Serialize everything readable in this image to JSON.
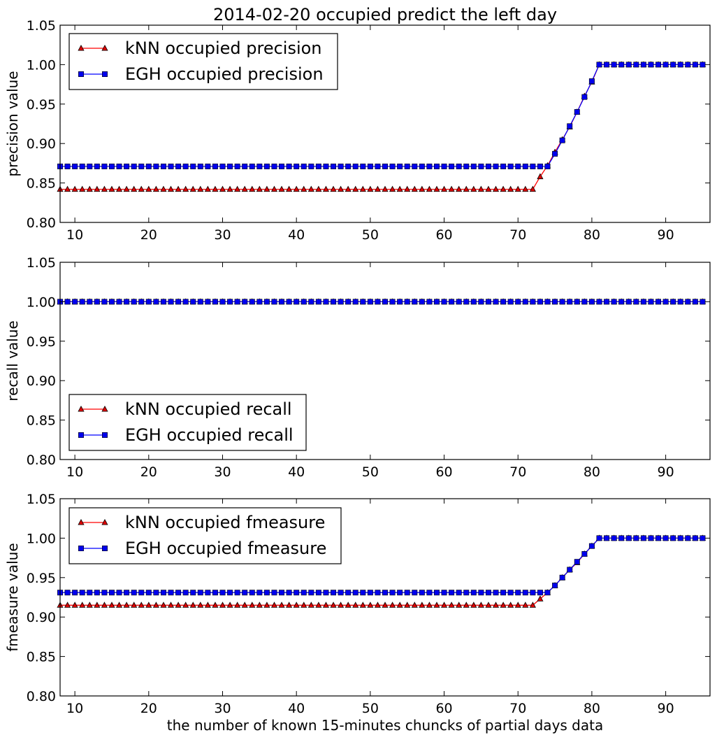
{
  "figure_title": "2014-02-20 occupied predict the left day",
  "colors": {
    "knn": "#ff0000",
    "egh": "#0000ff",
    "knn_marker_fill": "#dd0000",
    "egh_marker_fill": "#0000ee",
    "frame": "#000000"
  },
  "chart_data": [
    {
      "type": "line",
      "title": "2014-02-20 occupied predict the left day",
      "xlabel": "",
      "ylabel": "precision value",
      "xlim": [
        8,
        96
      ],
      "ylim": [
        0.8,
        1.05
      ],
      "xticks": [
        10,
        20,
        30,
        40,
        50,
        60,
        70,
        80,
        90
      ],
      "yticks": [
        "0.80",
        "0.85",
        "0.90",
        "0.95",
        "1.00",
        "1.05"
      ],
      "grid": false,
      "legend_position": "top-left",
      "x": [
        8,
        95
      ],
      "series": [
        {
          "name": "kNN occupied precision",
          "marker": "triangle",
          "color": "red",
          "points": [
            [
              8,
              0.842
            ],
            [
              72,
              0.842
            ],
            [
              73,
              0.858
            ],
            [
              74,
              0.872
            ],
            [
              75,
              0.889
            ],
            [
              76,
              0.905
            ],
            [
              77,
              0.921
            ],
            [
              78,
              0.94
            ],
            [
              79,
              0.96
            ],
            [
              80,
              0.978
            ],
            [
              81,
              1.0
            ],
            [
              95,
              1.0
            ]
          ]
        },
        {
          "name": "EGH occupied precision",
          "marker": "square",
          "color": "blue",
          "points": [
            [
              8,
              0.871
            ],
            [
              74,
              0.871
            ],
            [
              75,
              0.887
            ],
            [
              76,
              0.904
            ],
            [
              77,
              0.922
            ],
            [
              78,
              0.94
            ],
            [
              79,
              0.959
            ],
            [
              80,
              0.979
            ],
            [
              81,
              1.0
            ],
            [
              95,
              1.0
            ]
          ]
        }
      ]
    },
    {
      "type": "line",
      "title": "",
      "xlabel": "",
      "ylabel": "recall value",
      "xlim": [
        8,
        96
      ],
      "ylim": [
        0.8,
        1.05
      ],
      "xticks": [
        10,
        20,
        30,
        40,
        50,
        60,
        70,
        80,
        90
      ],
      "yticks": [
        "0.80",
        "0.85",
        "0.90",
        "0.95",
        "1.00",
        "1.05"
      ],
      "grid": false,
      "legend_position": "bottom-left",
      "series": [
        {
          "name": "kNN occupied recall",
          "marker": "triangle",
          "color": "red",
          "points": [
            [
              8,
              1.0
            ],
            [
              95,
              1.0
            ]
          ]
        },
        {
          "name": "EGH occupied recall",
          "marker": "square",
          "color": "blue",
          "points": [
            [
              8,
              1.0
            ],
            [
              95,
              1.0
            ]
          ]
        }
      ]
    },
    {
      "type": "line",
      "title": "",
      "xlabel": "the number of known 15-minutes chuncks of partial days data",
      "ylabel": "fmeasure value",
      "xlim": [
        8,
        96
      ],
      "ylim": [
        0.8,
        1.05
      ],
      "xticks": [
        10,
        20,
        30,
        40,
        50,
        60,
        70,
        80,
        90
      ],
      "yticks": [
        "0.80",
        "0.85",
        "0.90",
        "0.95",
        "1.00",
        "1.05"
      ],
      "grid": false,
      "legend_position": "top-left",
      "series": [
        {
          "name": "kNN occupied fmeasure",
          "marker": "triangle",
          "color": "red",
          "points": [
            [
              8,
              0.915
            ],
            [
              72,
              0.915
            ],
            [
              73,
              0.923
            ],
            [
              74,
              0.931
            ],
            [
              75,
              0.94
            ],
            [
              76,
              0.95
            ],
            [
              77,
              0.96
            ],
            [
              78,
              0.969
            ],
            [
              79,
              0.98
            ],
            [
              80,
              0.99
            ],
            [
              81,
              1.0
            ],
            [
              95,
              1.0
            ]
          ]
        },
        {
          "name": "EGH occupied fmeasure",
          "marker": "square",
          "color": "blue",
          "points": [
            [
              8,
              0.931
            ],
            [
              74,
              0.931
            ],
            [
              75,
              0.94
            ],
            [
              76,
              0.95
            ],
            [
              77,
              0.96
            ],
            [
              78,
              0.97
            ],
            [
              79,
              0.98
            ],
            [
              80,
              0.99
            ],
            [
              81,
              1.0
            ],
            [
              95,
              1.0
            ]
          ]
        }
      ]
    }
  ]
}
